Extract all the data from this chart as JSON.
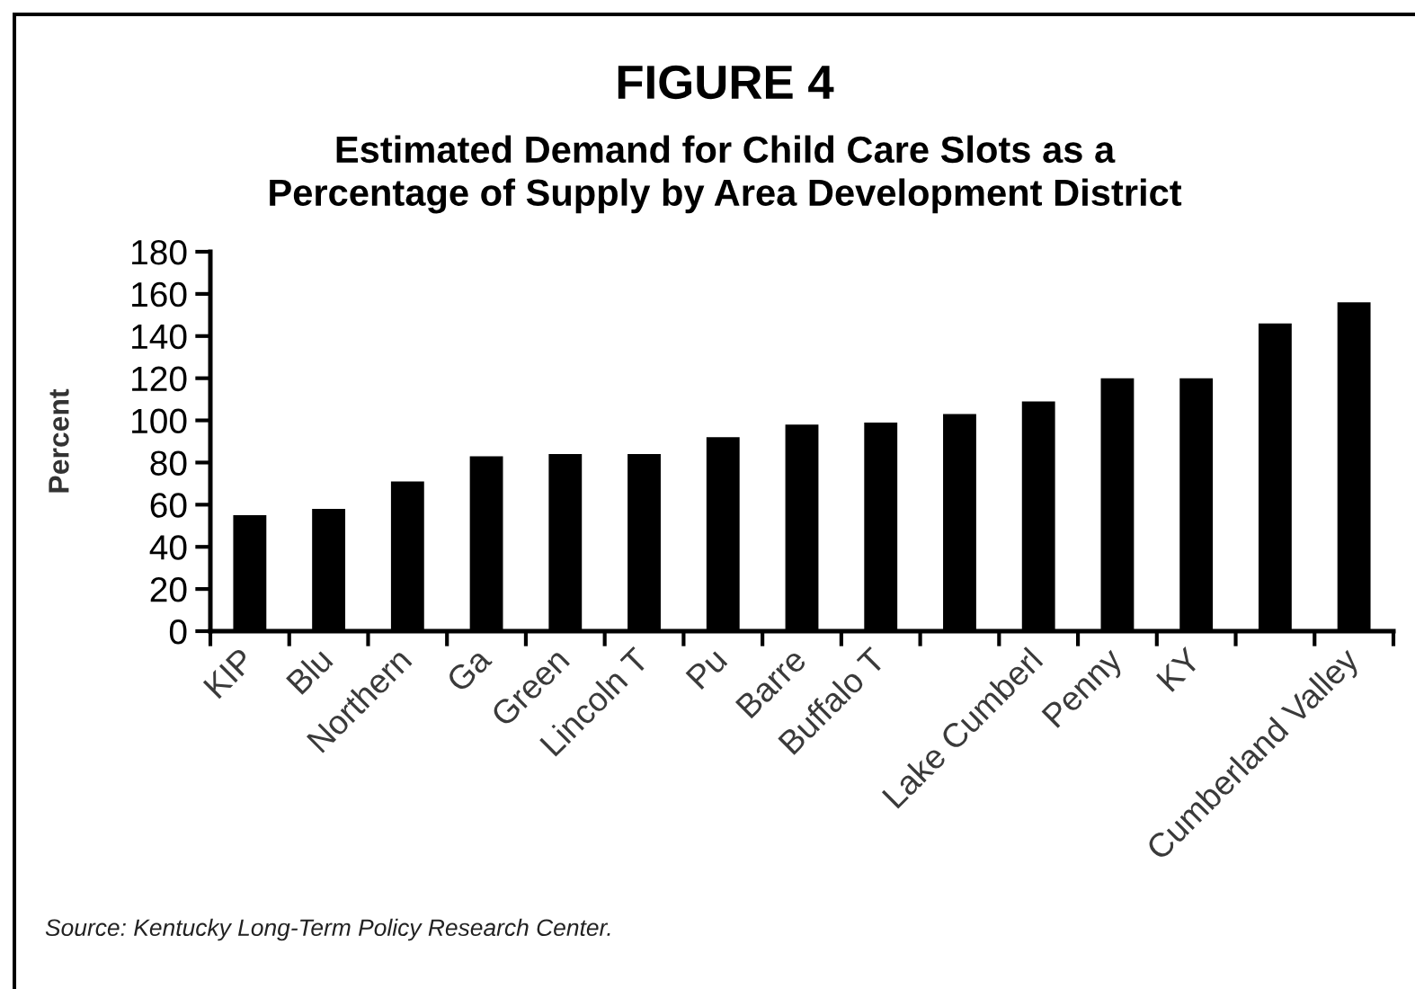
{
  "chart_data": {
    "type": "bar",
    "title": "FIGURE 4",
    "subtitle": "Estimated Demand for Child Care Slots as a\nPercentage of Supply by Area Development District",
    "ylabel": "Percent",
    "annotations": [
      "Source: Kentucky Long-Term Policy Research Center."
    ],
    "categories": [
      "KIP",
      "Blu",
      "Northern",
      "Ga",
      "Green",
      "Lincoln T",
      "Pu",
      "Barre",
      "Buffalo T",
      null,
      "Lake Cumberl",
      "Penny",
      "KY",
      null,
      "Cumberland Valley"
    ],
    "values": [
      55,
      58,
      71,
      83,
      84,
      84,
      92,
      98,
      99,
      103,
      109,
      120,
      120,
      146,
      156
    ],
    "color": "#000000",
    "ylim": [
      0,
      180
    ],
    "yticks": [
      0,
      20,
      40,
      60,
      80,
      100,
      120,
      140,
      160,
      180
    ],
    "grid": false
  }
}
